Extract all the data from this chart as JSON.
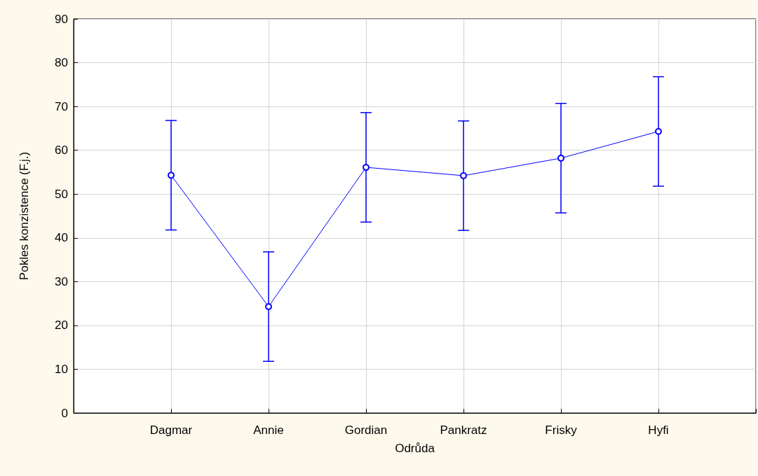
{
  "chart_data": {
    "type": "line",
    "xlabel": "Odrůda",
    "ylabel": "Pokles konzistence (F.j.)",
    "categories": [
      "Dagmar",
      "Annie",
      "Gordian",
      "Pankratz",
      "Frisky",
      "Hyfi"
    ],
    "series": [
      {
        "color": "#0000ff",
        "values": [
          54.3,
          24.3,
          56.1,
          54.2,
          58.2,
          64.3
        ],
        "errors": [
          12.5,
          12.5,
          12.5,
          12.5,
          12.5,
          12.5
        ]
      }
    ],
    "ylim": [
      0,
      90
    ],
    "yticks": [
      0,
      10,
      20,
      30,
      40,
      50,
      60,
      70,
      80,
      90
    ],
    "grid": true,
    "marker": "circle",
    "line_style": "solid"
  }
}
